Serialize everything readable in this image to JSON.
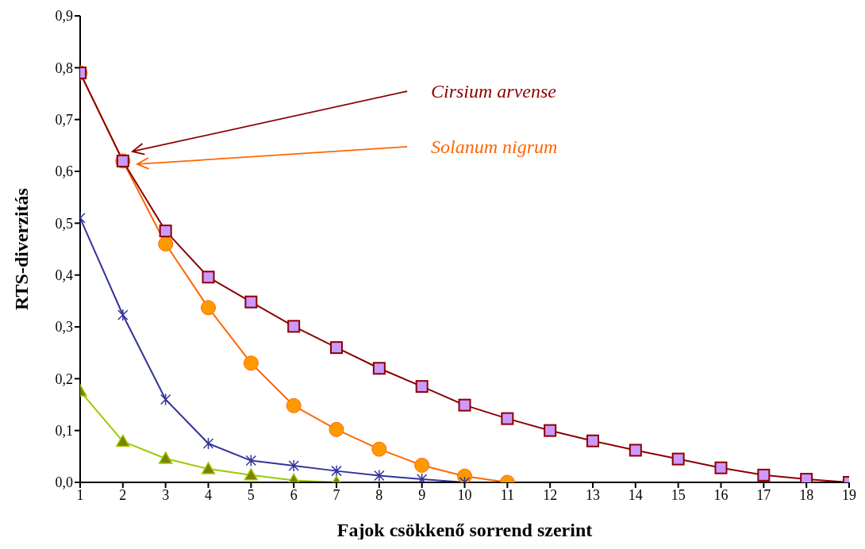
{
  "chart_data": {
    "type": "line",
    "xlabel": "Fajok csökkenő sorrend szerint",
    "ylabel": "RTS-diverzitás",
    "grid": false,
    "xlim": [
      1,
      19
    ],
    "xticks": [
      1,
      2,
      3,
      4,
      5,
      6,
      7,
      8,
      9,
      10,
      11,
      12,
      13,
      14,
      15,
      16,
      17,
      18,
      19
    ],
    "ylim": [
      0,
      0.9
    ],
    "yticks": [
      {
        "value": 0,
        "label": "0,0"
      },
      {
        "value": 0.1,
        "label": "0,1"
      },
      {
        "value": 0.2,
        "label": "0,2"
      },
      {
        "value": 0.3,
        "label": "0,3"
      },
      {
        "value": 0.4,
        "label": "0,4"
      },
      {
        "value": 0.5,
        "label": "0,5"
      },
      {
        "value": 0.6,
        "label": "0,6"
      },
      {
        "value": 0.7,
        "label": "0,7"
      },
      {
        "value": 0.8,
        "label": "0,8"
      },
      {
        "value": 0.9,
        "label": "0,9"
      }
    ],
    "series": [
      {
        "name": "Cirsium arvense",
        "color": "#8b0000",
        "marker": "square",
        "x": [
          1,
          2,
          3,
          4,
          5,
          6,
          7,
          8,
          9,
          10,
          11,
          12,
          13,
          14,
          15,
          16,
          17,
          18,
          19
        ],
        "values": [
          0.79,
          0.62,
          0.485,
          0.396,
          0.348,
          0.301,
          0.26,
          0.22,
          0.185,
          0.149,
          0.123,
          0.1,
          0.08,
          0.062,
          0.045,
          0.028,
          0.014,
          0.006,
          0
        ]
      },
      {
        "name": "Solanum nigrum",
        "color": "#ff6600",
        "marker": "circle",
        "x": [
          1,
          2,
          3,
          4,
          5,
          6,
          7,
          8,
          9,
          10,
          11
        ],
        "values": [
          0.79,
          0.62,
          0.46,
          0.337,
          0.23,
          0.148,
          0.102,
          0.064,
          0.033,
          0.012,
          0
        ]
      },
      {
        "color": "#333399",
        "marker": "cross",
        "x": [
          1,
          2,
          3,
          4,
          5,
          6,
          7,
          8,
          9,
          10
        ],
        "values": [
          0.51,
          0.323,
          0.16,
          0.075,
          0.042,
          0.032,
          0.022,
          0.013,
          0.006,
          0
        ]
      },
      {
        "color": "#99cc00",
        "marker": "triangle",
        "x": [
          1,
          2,
          3,
          4,
          5,
          6,
          7
        ],
        "values": [
          0.176,
          0.079,
          0.046,
          0.026,
          0.014,
          0.004,
          0
        ]
      }
    ]
  }
}
